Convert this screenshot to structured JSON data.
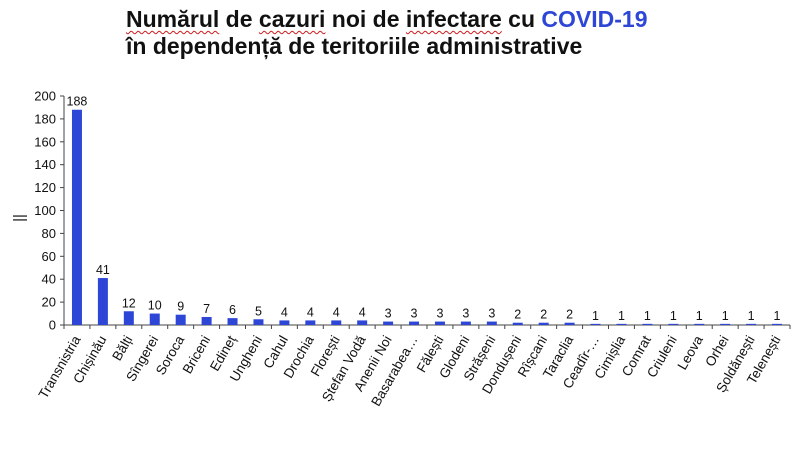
{
  "title": {
    "line1_parts": [
      {
        "text": "Numărul",
        "style": "squiggle"
      },
      {
        "text": " de ",
        "style": "plain"
      },
      {
        "text": "cazuri",
        "style": "squiggle"
      },
      {
        "text": " noi de ",
        "style": "plain"
      },
      {
        "text": "infectare",
        "style": "squiggle"
      },
      {
        "text": " cu ",
        "style": "plain"
      },
      {
        "text": "COVID-19",
        "style": "accent"
      }
    ],
    "line2": "în dependență de teritoriile administrative"
  },
  "colors": {
    "bar": "#2d46d6",
    "accent": "#2d46d6",
    "axis": "#444444",
    "text": "#111111"
  },
  "chart_data": {
    "type": "bar",
    "ylabel": "||",
    "ylim": [
      0,
      200
    ],
    "yticks": [
      0,
      20,
      40,
      60,
      80,
      100,
      120,
      140,
      160,
      180,
      200
    ],
    "categories": [
      "Transnistria",
      "Chișinău",
      "Bălți",
      "Sîngerei",
      "Soroca",
      "Briceni",
      "Edineț",
      "Ungheni",
      "Cahul",
      "Drochia",
      "Florești",
      "Ștefan Vodă",
      "Anenii Noi",
      "Basarabea…",
      "Fălești",
      "Glodeni",
      "Strășeni",
      "Dondușeni",
      "Rîșcani",
      "Taraclia",
      "Ceadîr-…",
      "Cimișlia",
      "Comrat",
      "Criuleni",
      "Leova",
      "Orhei",
      "Șoldănești",
      "Telenești"
    ],
    "values": [
      188,
      41,
      12,
      10,
      9,
      7,
      6,
      5,
      4,
      4,
      4,
      4,
      3,
      3,
      3,
      3,
      3,
      2,
      2,
      2,
      1,
      1,
      1,
      1,
      1,
      1,
      1,
      1
    ],
    "value_labels": [
      "188",
      "41",
      "12",
      "10",
      "9",
      "7",
      "6",
      "5",
      "4",
      "4",
      "4",
      "4",
      "3",
      "3",
      "3",
      "3",
      "3",
      "2",
      "2",
      "2",
      "1",
      "1",
      "1",
      "1",
      "1",
      "1",
      "1",
      "1"
    ]
  }
}
